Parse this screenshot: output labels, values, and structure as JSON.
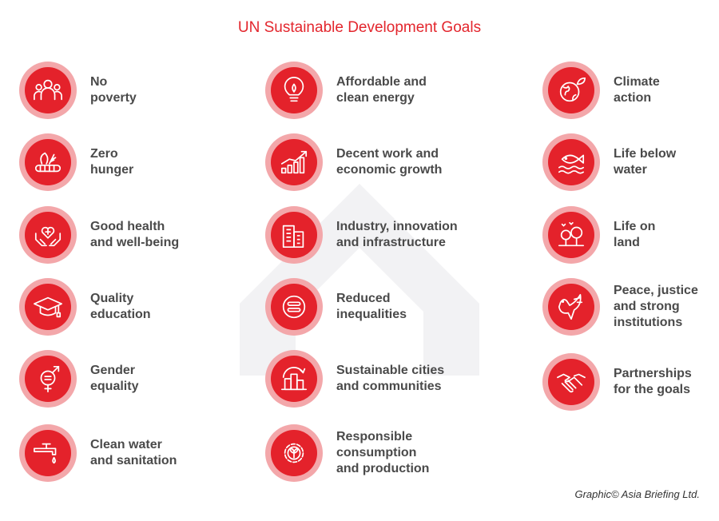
{
  "title": "UN Sustainable Development Goals",
  "accent_color": "#e4222b",
  "credit": "Graphic© Asia Briefing Ltd.",
  "goals": [
    {
      "line1": "No",
      "line2": "poverty",
      "line3": "",
      "icon": "people-icon"
    },
    {
      "line1": "Zero",
      "line2": "hunger",
      "line3": "",
      "icon": "food-icon"
    },
    {
      "line1": "Good health",
      "line2": "and well-being",
      "line3": "",
      "icon": "heart-hands-icon"
    },
    {
      "line1": "Quality",
      "line2": "education",
      "line3": "",
      "icon": "graduation-cap-icon"
    },
    {
      "line1": "Gender",
      "line2": "equality",
      "line3": "",
      "icon": "gender-symbol-icon"
    },
    {
      "line1": "Clean water",
      "line2": "and sanitation",
      "line3": "",
      "icon": "water-tap-icon"
    },
    {
      "line1": "Affordable and",
      "line2": "clean energy",
      "line3": "",
      "icon": "light-bulb-icon"
    },
    {
      "line1": "Decent work and",
      "line2": "economic growth",
      "line3": "",
      "icon": "growth-chart-icon"
    },
    {
      "line1": "Industry, innovation",
      "line2": "and infrastructure",
      "line3": "",
      "icon": "buildings-icon"
    },
    {
      "line1": "Reduced",
      "line2": "inequalities",
      "line3": "",
      "icon": "equals-icon"
    },
    {
      "line1": "Sustainable cities",
      "line2": "and communities",
      "line3": "",
      "icon": "city-icon"
    },
    {
      "line1": "Responsible",
      "line2": "consumption",
      "line3": "and production",
      "icon": "recycle-gear-icon"
    },
    {
      "line1": "Climate",
      "line2": "action",
      "line3": "",
      "icon": "globe-leaf-icon"
    },
    {
      "line1": "Life below",
      "line2": "water",
      "line3": "",
      "icon": "fish-icon"
    },
    {
      "line1": "Life on",
      "line2": "land",
      "line3": "",
      "icon": "trees-icon"
    },
    {
      "line1": "Peace, justice",
      "line2": "and strong",
      "line3": "institutions",
      "icon": "dove-icon"
    },
    {
      "line1": "Partnerships",
      "line2": "for the goals",
      "line3": "",
      "icon": "handshake-icon"
    }
  ]
}
